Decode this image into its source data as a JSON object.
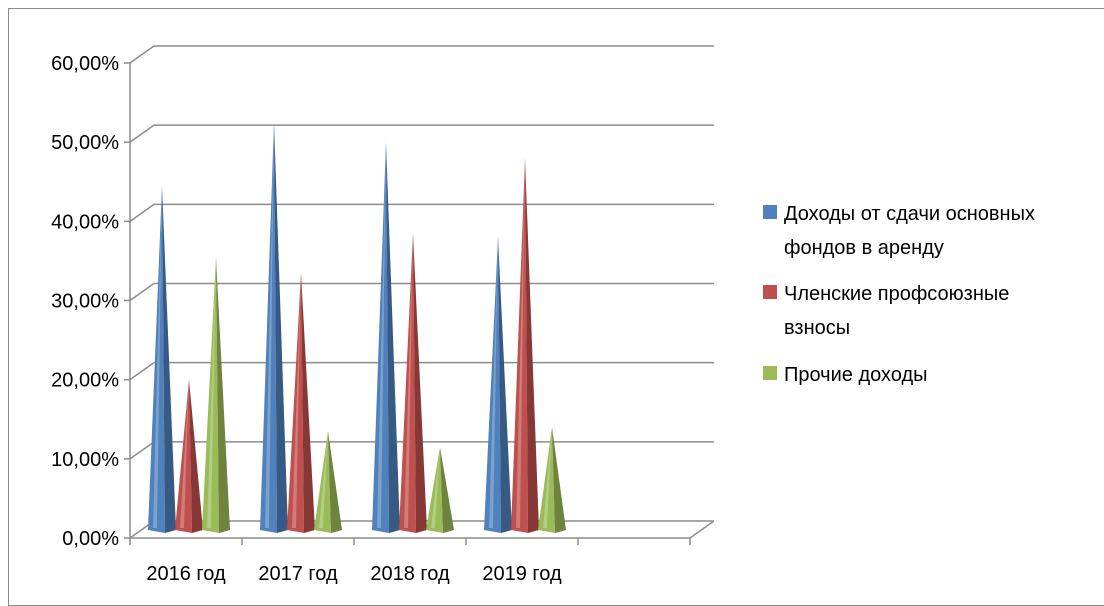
{
  "chart_data": {
    "type": "bar",
    "shape": "cone-3d",
    "categories": [
      "2016 год",
      "2017 год",
      "2018 год",
      "2019 год"
    ],
    "series": [
      {
        "name": "Доходы от сдачи основных фондов в аренду",
        "values": [
          44.5,
          52.5,
          50.0,
          38.0
        ],
        "color": "#4f81bd"
      },
      {
        "name": "Членские профсоюзные взносы",
        "values": [
          20.0,
          33.5,
          38.5,
          48.0
        ],
        "color": "#c0504d"
      },
      {
        "name": "Прочие доходы",
        "values": [
          35.5,
          13.5,
          11.5,
          14.0
        ],
        "color": "#9bbb59"
      }
    ],
    "y_ticks": [
      "0,00%",
      "10,00%",
      "20,00%",
      "30,00%",
      "40,00%",
      "50,00%",
      "60,00%"
    ],
    "ylim": [
      0,
      60
    ],
    "grid": true,
    "legend_position": "right",
    "legend_lines": [
      [
        "Доходы от сдачи основных",
        "фондов в аренду"
      ],
      [
        "Членские профсоюзные",
        "взносы"
      ],
      [
        "Прочие доходы"
      ]
    ]
  }
}
